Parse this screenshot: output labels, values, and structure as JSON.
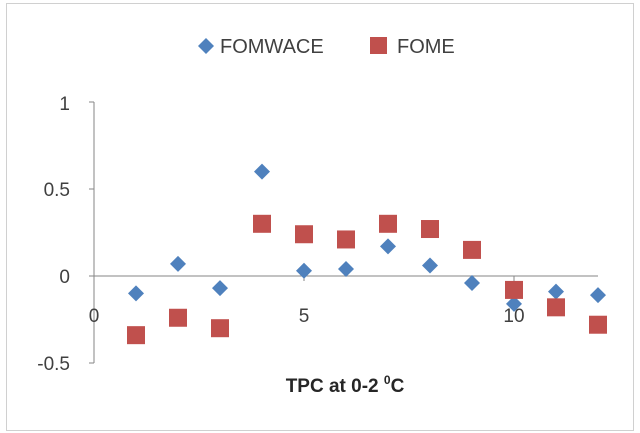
{
  "chart_data": {
    "type": "scatter",
    "xlabel": {
      "main": "TPC at 0-2 ",
      "sup": "0",
      "unit": "C"
    },
    "ylabel": "",
    "xlim": [
      0,
      12
    ],
    "ylim": [
      -0.5,
      1
    ],
    "x_ticks": [
      "0",
      "5",
      "10"
    ],
    "y_ticks": [
      "1",
      "0.5",
      "0",
      "-0.5"
    ],
    "legend_position": "top",
    "series": [
      {
        "name": "FOMWACE",
        "marker": "diamond",
        "color": "#4f81bd",
        "x": [
          1,
          2,
          3,
          4,
          5,
          6,
          7,
          8,
          9,
          10,
          11,
          12
        ],
        "y": [
          -0.1,
          0.07,
          -0.07,
          0.6,
          0.03,
          0.04,
          0.17,
          0.06,
          -0.04,
          -0.16,
          -0.09,
          -0.11
        ]
      },
      {
        "name": "FOME",
        "marker": "square",
        "color": "#c0504d",
        "x": [
          1,
          2,
          3,
          4,
          5,
          6,
          7,
          8,
          9,
          10,
          11,
          12
        ],
        "y": [
          -0.34,
          -0.24,
          -0.3,
          0.3,
          0.24,
          0.21,
          0.3,
          0.27,
          0.15,
          -0.08,
          -0.18,
          -0.28
        ]
      }
    ]
  }
}
